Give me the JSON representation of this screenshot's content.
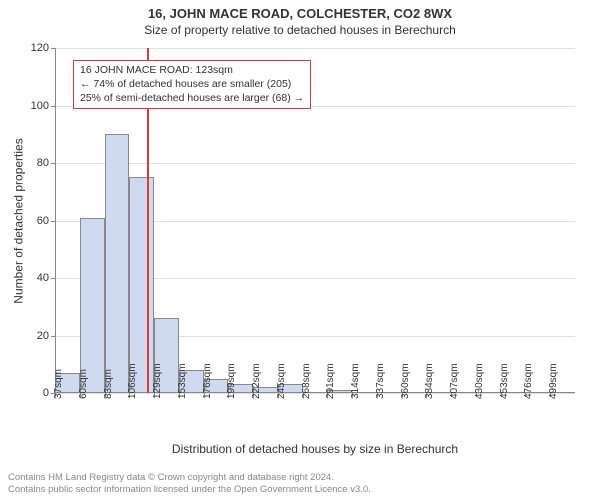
{
  "title": "16, JOHN MACE ROAD, COLCHESTER, CO2 8WX",
  "subtitle": "Size of property relative to detached houses in Berechurch",
  "y_axis_label": "Number of detached properties",
  "x_axis_label": "Distribution of detached houses by size in Berechurch",
  "footer_line1": "Contains HM Land Registry data © Crown copyright and database right 2024.",
  "footer_line2": "Contains public sector information licensed under the Open Government Licence v3.0.",
  "chart": {
    "type": "histogram",
    "background_color": "#ffffff",
    "grid_color": "#e0e0e0",
    "axis_color": "#888888",
    "bar_fill": "#cfd9ef",
    "bar_border": "#888888",
    "marker_color": "#d93a3a",
    "annotation_border": "#d93a3a",
    "annotation_bg": "#ffffff",
    "ylim": [
      0,
      120
    ],
    "ytick_step": 20,
    "y_ticks": [
      0,
      20,
      40,
      60,
      80,
      100,
      120
    ],
    "x_labels": [
      "37sqm",
      "60sqm",
      "83sqm",
      "106sqm",
      "129sqm",
      "153sqm",
      "176sqm",
      "199sqm",
      "222sqm",
      "245sqm",
      "268sqm",
      "291sqm",
      "314sqm",
      "337sqm",
      "360sqm",
      "384sqm",
      "407sqm",
      "430sqm",
      "453sqm",
      "476sqm",
      "499sqm"
    ],
    "values": [
      7,
      61,
      90,
      75,
      26,
      8,
      5,
      3,
      2,
      3,
      0,
      1,
      0,
      0,
      0,
      0,
      0,
      0,
      0,
      0,
      0
    ],
    "marker_bin_index": 3.7,
    "annotation": {
      "line1": "16 JOHN MACE ROAD: 123sqm",
      "line2": "← 74% of detached houses are smaller (205)",
      "line3": "25% of semi-detached houses are larger (68) →"
    },
    "title_fontsize": 13,
    "subtitle_fontsize": 12,
    "label_fontsize": 12,
    "tick_fontsize": 11
  }
}
